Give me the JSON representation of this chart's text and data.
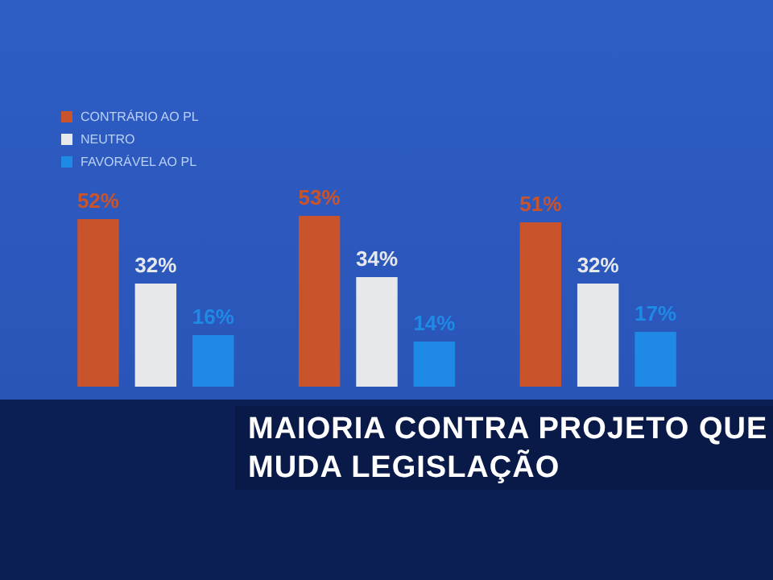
{
  "chart_data": {
    "type": "bar",
    "title": "MAIORIA CONTRA PROJETO QUE MUDA LEGISLAÇÃO",
    "categories": [
      null,
      null,
      null
    ],
    "series": [
      {
        "name": "CONTRÁRIO AO PL",
        "color": "#c9532b",
        "values": [
          52,
          53,
          51
        ],
        "value_labels": [
          "52%",
          "53%",
          "51%"
        ]
      },
      {
        "name": "NEUTRO",
        "color": "#e6e8ec",
        "values": [
          32,
          34,
          32
        ],
        "value_labels": [
          "32%",
          "34%",
          "32%"
        ]
      },
      {
        "name": "FAVORÁVEL AO PL",
        "color": "#1f8ae6",
        "values": [
          16,
          14,
          17
        ],
        "value_labels": [
          "16%",
          "14%",
          "17%"
        ]
      }
    ],
    "legend": "top left",
    "grid": false
  }
}
